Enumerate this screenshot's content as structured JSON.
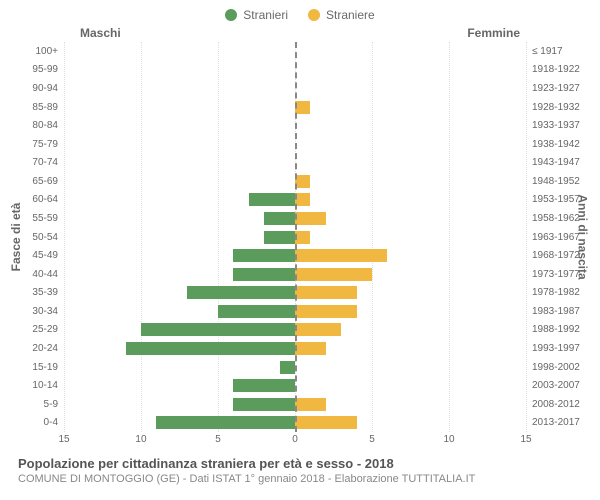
{
  "type": "population-pyramid",
  "background_color": "#ffffff",
  "grid_color": "#e0e0e0",
  "text_color": "#666666",
  "center_line_color": "#888888",
  "series": {
    "male": {
      "label": "Stranieri",
      "color": "#5b9b5b"
    },
    "female": {
      "label": "Straniere",
      "color": "#f0b840"
    }
  },
  "column_headers": {
    "left": "Maschi",
    "right": "Femmine"
  },
  "y_axis_left_title": "Fasce di età",
  "y_axis_right_title": "Anni di nascita",
  "x_max": 15,
  "x_ticks": [
    15,
    10,
    5,
    0,
    5,
    10,
    15
  ],
  "bar_height_ratio": 0.7,
  "rows": [
    {
      "age": "100+",
      "years": "≤ 1917",
      "m": 0,
      "f": 0
    },
    {
      "age": "95-99",
      "years": "1918-1922",
      "m": 0,
      "f": 0
    },
    {
      "age": "90-94",
      "years": "1923-1927",
      "m": 0,
      "f": 0
    },
    {
      "age": "85-89",
      "years": "1928-1932",
      "m": 0,
      "f": 1
    },
    {
      "age": "80-84",
      "years": "1933-1937",
      "m": 0,
      "f": 0
    },
    {
      "age": "75-79",
      "years": "1938-1942",
      "m": 0,
      "f": 0
    },
    {
      "age": "70-74",
      "years": "1943-1947",
      "m": 0,
      "f": 0
    },
    {
      "age": "65-69",
      "years": "1948-1952",
      "m": 0,
      "f": 1
    },
    {
      "age": "60-64",
      "years": "1953-1957",
      "m": 3,
      "f": 1
    },
    {
      "age": "55-59",
      "years": "1958-1962",
      "m": 2,
      "f": 2
    },
    {
      "age": "50-54",
      "years": "1963-1967",
      "m": 2,
      "f": 1
    },
    {
      "age": "45-49",
      "years": "1968-1972",
      "m": 4,
      "f": 6
    },
    {
      "age": "40-44",
      "years": "1973-1977",
      "m": 4,
      "f": 5
    },
    {
      "age": "35-39",
      "years": "1978-1982",
      "m": 7,
      "f": 4
    },
    {
      "age": "30-34",
      "years": "1983-1987",
      "m": 5,
      "f": 4
    },
    {
      "age": "25-29",
      "years": "1988-1992",
      "m": 10,
      "f": 3
    },
    {
      "age": "20-24",
      "years": "1993-1997",
      "m": 11,
      "f": 2
    },
    {
      "age": "15-19",
      "years": "1998-2002",
      "m": 1,
      "f": 0
    },
    {
      "age": "10-14",
      "years": "2003-2007",
      "m": 4,
      "f": 0
    },
    {
      "age": "5-9",
      "years": "2008-2012",
      "m": 4,
      "f": 2
    },
    {
      "age": "0-4",
      "years": "2013-2017",
      "m": 9,
      "f": 4
    }
  ],
  "footer": {
    "title": "Popolazione per cittadinanza straniera per età e sesso - 2018",
    "subtitle": "COMUNE DI MONTOGGIO (GE) - Dati ISTAT 1° gennaio 2018 - Elaborazione TUTTITALIA.IT"
  }
}
